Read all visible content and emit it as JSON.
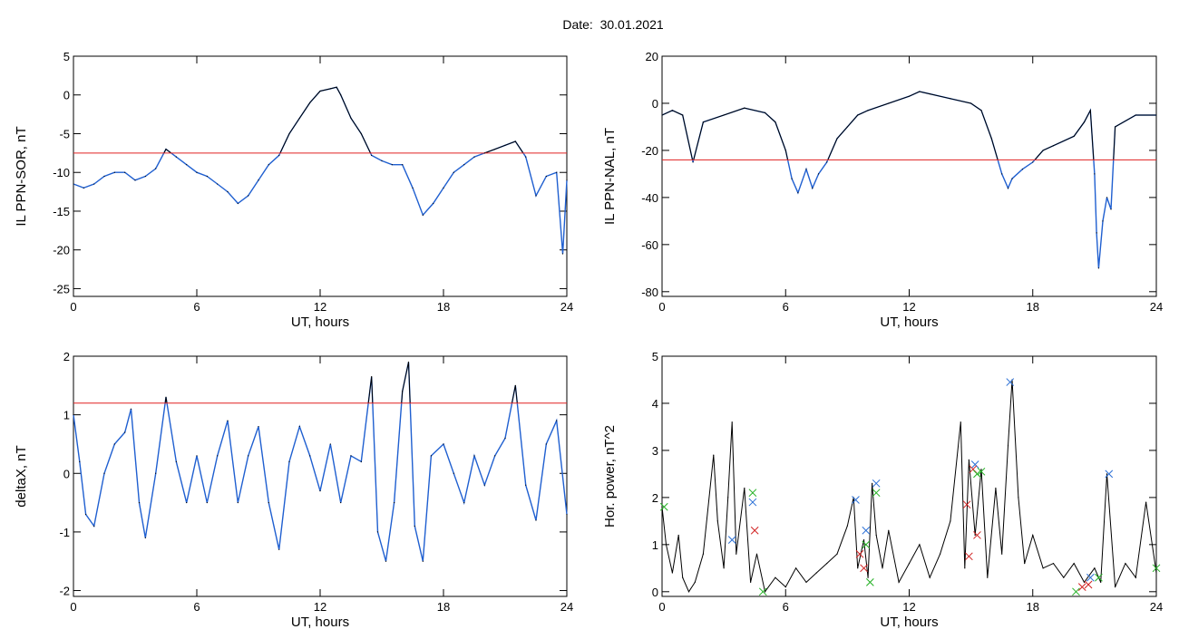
{
  "header": {
    "date_text": "Date:  30.01.2021"
  },
  "colors": {
    "trace": "#000000",
    "below_threshold": "#1f5fd0",
    "threshold": "#e02020",
    "marker_blue": "#2a6fd6",
    "marker_red": "#d02020",
    "marker_green": "#22b022"
  },
  "chart_data": [
    {
      "type": "line",
      "ylabel": "IL PPN-SOR, nT",
      "xlabel": "UT, hours",
      "xlim": [
        0,
        24
      ],
      "ylim": [
        -26,
        5
      ],
      "xticks": [
        0,
        6,
        12,
        18,
        24
      ],
      "yticks": [
        5,
        0,
        -5,
        -10,
        -15,
        -20,
        -25
      ],
      "threshold": -7.5,
      "series": [
        {
          "x": [
            0,
            0.5,
            1,
            1.5,
            2,
            2.5,
            3,
            3.5,
            4,
            4.5,
            5,
            5.5,
            6,
            6.5,
            7,
            7.5,
            8,
            8.5,
            9,
            9.5,
            10,
            10.5,
            11,
            11.5,
            12,
            12.5,
            12.8,
            13,
            13.5,
            14,
            14.5,
            15,
            15.5,
            16,
            16.5,
            17,
            17.5,
            18,
            18.5,
            19,
            19.5,
            20,
            20.5,
            21,
            21.5,
            22,
            22.5,
            23,
            23.5,
            23.8,
            24
          ],
          "y": [
            -11.5,
            -12,
            -11.5,
            -10.5,
            -10,
            -10,
            -11,
            -10.5,
            -9.5,
            -7,
            -8,
            -9,
            -10,
            -10.5,
            -11.5,
            -12.5,
            -14,
            -13,
            -11,
            -9,
            -7.8,
            -5,
            -3,
            -1,
            0.5,
            0.8,
            1,
            0,
            -3,
            -5,
            -7.8,
            -8.5,
            -9,
            -9,
            -12,
            -15.5,
            -14,
            -12,
            -10,
            -9,
            -8,
            -7.5,
            -7,
            -6.5,
            -6,
            -8,
            -13,
            -10.5,
            -10,
            -20.5,
            -11
          ]
        }
      ]
    },
    {
      "type": "line",
      "ylabel": "IL PPN-NAL, nT",
      "xlabel": "UT, hours",
      "xlim": [
        0,
        24
      ],
      "ylim": [
        -82,
        20
      ],
      "xticks": [
        0,
        6,
        12,
        18,
        24
      ],
      "yticks": [
        20,
        0,
        -20,
        -40,
        -60,
        -80
      ],
      "threshold": -24,
      "series": [
        {
          "x": [
            0,
            0.5,
            1,
            1.5,
            2,
            3,
            4,
            5,
            5.5,
            6,
            6.3,
            6.6,
            7,
            7.3,
            7.6,
            8,
            8.5,
            9,
            9.5,
            10,
            11,
            12,
            12.5,
            13,
            14,
            15,
            15.5,
            16,
            16.5,
            16.8,
            17,
            17.5,
            18,
            18.5,
            19,
            20,
            20.5,
            20.8,
            21,
            21.1,
            21.2,
            21.4,
            21.6,
            21.8,
            22,
            23,
            24
          ],
          "y": [
            -5,
            -3,
            -5,
            -25,
            -8,
            -5,
            -2,
            -4,
            -8,
            -20,
            -32,
            -38,
            -28,
            -36,
            -30,
            -25,
            -15,
            -10,
            -5,
            -3,
            0,
            3,
            5,
            4,
            2,
            0,
            -3,
            -15,
            -30,
            -36,
            -32,
            -28,
            -25,
            -20,
            -18,
            -14,
            -8,
            -3,
            -30,
            -55,
            -70,
            -50,
            -40,
            -45,
            -10,
            -5,
            -5
          ]
        }
      ]
    },
    {
      "type": "line",
      "ylabel": "deltaX, nT",
      "xlabel": "UT, hours",
      "xlim": [
        0,
        24
      ],
      "ylim": [
        -2.1,
        2
      ],
      "xticks": [
        0,
        6,
        12,
        18,
        24
      ],
      "yticks": [
        2,
        1,
        0,
        -1,
        -2
      ],
      "threshold": 1.2,
      "series": [
        {
          "x": [
            0,
            0.3,
            0.6,
            1,
            1.5,
            2,
            2.5,
            2.8,
            3.2,
            3.5,
            4,
            4.5,
            5,
            5.5,
            6,
            6.5,
            7,
            7.5,
            8,
            8.5,
            9,
            9.5,
            10,
            10.5,
            11,
            11.5,
            12,
            12.5,
            13,
            13.5,
            14,
            14.5,
            14.8,
            15.2,
            15.6,
            16,
            16.3,
            16.6,
            17,
            17.4,
            18,
            18.5,
            19,
            19.5,
            20,
            20.5,
            21,
            21.5,
            22,
            22.5,
            23,
            23.5,
            24
          ],
          "y": [
            1,
            0.2,
            -0.7,
            -0.9,
            0,
            0.5,
            0.7,
            1.1,
            -0.5,
            -1.1,
            0,
            1.3,
            0.2,
            -0.5,
            0.3,
            -0.5,
            0.3,
            0.9,
            -0.5,
            0.3,
            0.8,
            -0.5,
            -1.3,
            0.2,
            0.8,
            0.3,
            -0.3,
            0.5,
            -0.5,
            0.3,
            0.2,
            1.65,
            -1,
            -1.5,
            -0.5,
            1.4,
            1.9,
            -0.9,
            -1.5,
            0.3,
            0.5,
            0,
            -0.5,
            0.3,
            -0.2,
            0.3,
            0.6,
            1.5,
            -0.2,
            -0.8,
            0.5,
            0.9,
            -0.7
          ]
        }
      ]
    },
    {
      "type": "line",
      "ylabel": "Hor. power, nT^2",
      "xlabel": "UT, hours",
      "xlim": [
        0,
        24
      ],
      "ylim": [
        -0.1,
        5
      ],
      "xticks": [
        0,
        6,
        12,
        18,
        24
      ],
      "yticks": [
        5,
        4,
        3,
        2,
        1,
        0
      ],
      "series": [
        {
          "x": [
            0,
            0.2,
            0.5,
            0.8,
            1,
            1.3,
            1.6,
            2,
            2.5,
            2.7,
            3,
            3.2,
            3.4,
            3.6,
            4,
            4.3,
            4.6,
            5,
            5.5,
            6,
            6.5,
            7,
            7.5,
            8,
            8.5,
            9,
            9.3,
            9.5,
            9.8,
            10,
            10.2,
            10.4,
            10.7,
            11,
            11.5,
            12,
            12.5,
            13,
            13.5,
            14,
            14.5,
            14.7,
            14.9,
            15.2,
            15.5,
            15.8,
            16.2,
            16.5,
            16.8,
            17,
            17.3,
            17.6,
            18,
            18.5,
            19,
            19.5,
            20,
            20.5,
            21,
            21.3,
            21.6,
            22,
            22.5,
            23,
            23.5,
            24
          ],
          "y": [
            1.8,
            1,
            0.4,
            1.2,
            0.3,
            0,
            0.2,
            0.8,
            2.9,
            1.5,
            0.5,
            2,
            3.6,
            0.8,
            2.2,
            0.2,
            0.8,
            0,
            0.3,
            0.1,
            0.5,
            0.2,
            0.4,
            0.6,
            0.8,
            1.4,
            2,
            0.5,
            1.1,
            0.3,
            2.3,
            1.2,
            0.5,
            1.3,
            0.2,
            0.6,
            1,
            0.3,
            0.8,
            1.5,
            3.6,
            0.5,
            2.8,
            1.2,
            2.6,
            0.3,
            2.2,
            0.8,
            3.1,
            4.5,
            2,
            0.6,
            1.2,
            0.5,
            0.6,
            0.3,
            0.6,
            0.2,
            0.5,
            0.2,
            2.5,
            0.1,
            0.6,
            0.3,
            1.9,
            0.4
          ]
        }
      ],
      "markers": [
        {
          "color": "blue",
          "x": [
            3.4,
            4.4,
            9.4,
            9.9,
            10.4,
            15.2,
            16.9,
            21.7,
            20.8
          ],
          "y": [
            1.1,
            1.9,
            1.95,
            1.3,
            2.3,
            2.7,
            4.45,
            2.5,
            0.3
          ]
        },
        {
          "color": "red",
          "x": [
            4.5,
            9.6,
            9.8,
            14.8,
            14.9,
            15.3,
            15.1,
            20.4,
            20.7
          ],
          "y": [
            1.3,
            0.8,
            0.5,
            1.85,
            0.75,
            1.2,
            2.6,
            0.1,
            0.15
          ]
        },
        {
          "color": "green",
          "x": [
            0.1,
            4.4,
            4.9,
            9.9,
            10.1,
            10.4,
            15.5,
            15.3,
            20.1,
            21.2,
            24
          ],
          "y": [
            1.8,
            2.1,
            0,
            1.0,
            0.2,
            2.1,
            2.55,
            2.5,
            0,
            0.3,
            0.5
          ]
        }
      ]
    }
  ]
}
